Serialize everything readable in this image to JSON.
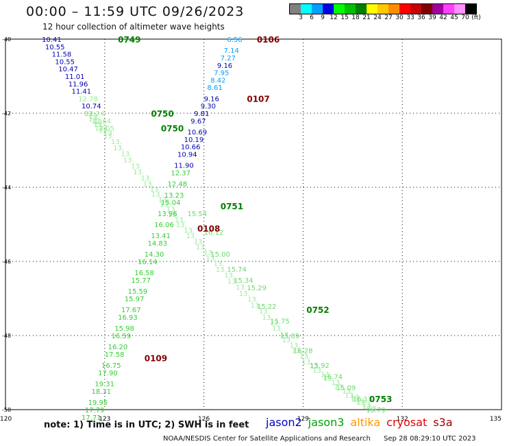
{
  "title": "00:00 – 11:59 UTC 09/26/2023",
  "subtitle": "12 hour collection of altimeter wave heights",
  "legend": {
    "labels": [
      "3",
      "6",
      "9",
      "12",
      "15",
      "18",
      "21",
      "24",
      "27",
      "30",
      "33",
      "36",
      "39",
      "42",
      "45",
      "70",
      "(ft)"
    ],
    "colors": [
      "#808080",
      "#00ffff",
      "#00a0ff",
      "#0000e0",
      "#00ff00",
      "#00c000",
      "#008000",
      "#ffff00",
      "#ffc800",
      "#ff8c00",
      "#ff0000",
      "#c80000",
      "#800000",
      "#a000a0",
      "#ff40ff",
      "#ff90ff",
      "#000000"
    ]
  },
  "note": "note: 1) Time is in UTC; 2) SWH is in feet",
  "satellites": [
    {
      "name": "jason2",
      "color": "#0000c8"
    },
    {
      "name": "jason3",
      "color": "#00a000"
    },
    {
      "name": "altika",
      "color": "#ff9900"
    },
    {
      "name": "cryosat",
      "color": "#e00000"
    },
    {
      "name": "s3a",
      "color": "#a00000"
    }
  ],
  "footer": {
    "agency": "NOAA/NESDIS Center for Satellite Applications and Research",
    "timestamp": "Sep 28 08:29:10 UTC 2023"
  },
  "axes": {
    "lat_labels": [
      "-40",
      "-42",
      "-44",
      "-46",
      "-48",
      "-50"
    ],
    "lon_labels": [
      "120",
      "123",
      "126",
      "129",
      "132",
      "135"
    ],
    "lat_range": [
      -40,
      -50
    ],
    "lon_range": [
      120,
      135
    ]
  },
  "chart_data": {
    "type": "scatter",
    "xlabel": "",
    "ylabel": "",
    "xlim": [
      120,
      135
    ],
    "ylim": [
      -50,
      -40
    ],
    "time_labels": [
      {
        "text": "0749",
        "lon": 123.4,
        "lat": -40.0,
        "color": "#008000"
      },
      {
        "text": "0750",
        "lon": 124.4,
        "lat": -42.0,
        "color": "#008000"
      },
      {
        "text": "0750",
        "lon": 124.7,
        "lat": -42.4,
        "color": "#008000"
      },
      {
        "text": "0751",
        "lon": 126.5,
        "lat": -44.5,
        "color": "#008000"
      },
      {
        "text": "0752",
        "lon": 129.1,
        "lat": -47.3,
        "color": "#008000"
      },
      {
        "text": "0753",
        "lon": 131.0,
        "lat": -49.7,
        "color": "#008000"
      },
      {
        "text": "0106",
        "lon": 127.6,
        "lat": -40.0,
        "color": "#800000"
      },
      {
        "text": "0107",
        "lon": 127.3,
        "lat": -41.6,
        "color": "#800000"
      },
      {
        "text": "0108",
        "lon": 125.8,
        "lat": -45.1,
        "color": "#800000"
      },
      {
        "text": "0109",
        "lon": 124.2,
        "lat": -48.6,
        "color": "#800000"
      }
    ],
    "track_jason2_nw": [
      {
        "lon": 121.1,
        "lat": -40.0,
        "v": "10.41"
      },
      {
        "lon": 121.2,
        "lat": -40.2,
        "v": "10.55"
      },
      {
        "lon": 121.4,
        "lat": -40.4,
        "v": "11.58"
      },
      {
        "lon": 121.5,
        "lat": -40.6,
        "v": "10.55"
      },
      {
        "lon": 121.6,
        "lat": -40.8,
        "v": "10.47"
      },
      {
        "lon": 121.8,
        "lat": -41.0,
        "v": "11.01"
      },
      {
        "lon": 121.9,
        "lat": -41.2,
        "v": "11.96"
      },
      {
        "lon": 122.0,
        "lat": -41.4,
        "v": "11.41"
      },
      {
        "lon": 122.2,
        "lat": -41.6,
        "v": "12.78"
      },
      {
        "lon": 122.3,
        "lat": -41.8,
        "v": "10.74"
      },
      {
        "lon": 122.4,
        "lat": -42.0,
        "v": "12.24"
      },
      {
        "lon": 122.6,
        "lat": -42.2,
        "v": "12.64"
      },
      {
        "lon": 122.7,
        "lat": -42.4,
        "v": "13.05"
      }
    ],
    "track_jason3_ne": [
      {
        "lon": 126.7,
        "lat": -40.0,
        "v": "6.56"
      },
      {
        "lon": 126.6,
        "lat": -40.3,
        "v": "7.14"
      },
      {
        "lon": 126.5,
        "lat": -40.5,
        "v": "7.27"
      },
      {
        "lon": 126.4,
        "lat": -40.7,
        "v": "9.16"
      },
      {
        "lon": 126.3,
        "lat": -40.9,
        "v": "7.95"
      },
      {
        "lon": 126.2,
        "lat": -41.1,
        "v": "8.42"
      },
      {
        "lon": 126.1,
        "lat": -41.3,
        "v": "8.61"
      },
      {
        "lon": 126.0,
        "lat": -41.6,
        "v": "9.16"
      },
      {
        "lon": 125.9,
        "lat": -41.8,
        "v": "9.30"
      },
      {
        "lon": 125.7,
        "lat": -42.0,
        "v": "9.81"
      },
      {
        "lon": 125.6,
        "lat": -42.2,
        "v": "9.67"
      },
      {
        "lon": 125.5,
        "lat": -42.5,
        "v": "10.69"
      },
      {
        "lon": 125.4,
        "lat": -42.7,
        "v": "10.19"
      },
      {
        "lon": 125.3,
        "lat": -42.9,
        "v": "10.66"
      },
      {
        "lon": 125.2,
        "lat": -43.1,
        "v": "10.94"
      },
      {
        "lon": 125.1,
        "lat": -43.4,
        "v": "11.90"
      },
      {
        "lon": 125.0,
        "lat": -43.6,
        "v": "12.37"
      },
      {
        "lon": 124.9,
        "lat": -43.9,
        "v": "12.48"
      },
      {
        "lon": 124.8,
        "lat": -44.2,
        "v": "13.23"
      },
      {
        "lon": 124.7,
        "lat": -44.4,
        "v": "15.04"
      },
      {
        "lon": 124.6,
        "lat": -44.7,
        "v": "13.96"
      },
      {
        "lon": 124.5,
        "lat": -45.0,
        "v": "16.06"
      },
      {
        "lon": 124.4,
        "lat": -45.3,
        "v": "13.41"
      },
      {
        "lon": 124.3,
        "lat": -45.5,
        "v": "14.83"
      },
      {
        "lon": 124.2,
        "lat": -45.8,
        "v": "14.30"
      },
      {
        "lon": 124.0,
        "lat": -46.0,
        "v": "16.14"
      },
      {
        "lon": 123.9,
        "lat": -46.3,
        "v": "16.58"
      },
      {
        "lon": 123.8,
        "lat": -46.5,
        "v": "15.77"
      },
      {
        "lon": 123.7,
        "lat": -46.8,
        "v": "15.59"
      },
      {
        "lon": 123.6,
        "lat": -47.0,
        "v": "15.97"
      },
      {
        "lon": 123.5,
        "lat": -47.3,
        "v": "17.67"
      },
      {
        "lon": 123.4,
        "lat": -47.5,
        "v": "16.93"
      },
      {
        "lon": 123.3,
        "lat": -47.8,
        "v": "15.98"
      },
      {
        "lon": 123.2,
        "lat": -48.0,
        "v": "16.59"
      },
      {
        "lon": 123.1,
        "lat": -48.3,
        "v": "16.20"
      },
      {
        "lon": 123.0,
        "lat": -48.5,
        "v": "17.58"
      },
      {
        "lon": 122.9,
        "lat": -48.8,
        "v": "16.75"
      },
      {
        "lon": 122.8,
        "lat": -49.0,
        "v": "17.90"
      },
      {
        "lon": 122.7,
        "lat": -49.3,
        "v": "19.31"
      },
      {
        "lon": 122.6,
        "lat": -49.5,
        "v": "18.31"
      },
      {
        "lon": 122.5,
        "lat": -49.8,
        "v": "19.95"
      },
      {
        "lon": 122.4,
        "lat": -50.0,
        "v": "17.79"
      },
      {
        "lon": 122.3,
        "lat": -50.2,
        "v": "17.71"
      }
    ],
    "track_se_labels": [
      {
        "lon": 125.5,
        "lat": -44.7,
        "v": "15.54"
      },
      {
        "lon": 126.0,
        "lat": -45.2,
        "v": "16.12"
      },
      {
        "lon": 126.2,
        "lat": -45.8,
        "v": "15.00"
      },
      {
        "lon": 126.7,
        "lat": -46.2,
        "v": "15.74"
      },
      {
        "lon": 126.9,
        "lat": -46.5,
        "v": "15.34"
      },
      {
        "lon": 127.3,
        "lat": -46.7,
        "v": "15.29"
      },
      {
        "lon": 127.6,
        "lat": -47.2,
        "v": "15.22"
      },
      {
        "lon": 128.0,
        "lat": -47.6,
        "v": "15.75"
      },
      {
        "lon": 128.3,
        "lat": -48.0,
        "v": "15.89"
      },
      {
        "lon": 128.7,
        "lat": -48.4,
        "v": "16.28"
      },
      {
        "lon": 129.2,
        "lat": -48.8,
        "v": "15.92"
      },
      {
        "lon": 129.6,
        "lat": -49.1,
        "v": "16.74"
      },
      {
        "lon": 130.0,
        "lat": -49.4,
        "v": "15.09"
      },
      {
        "lon": 130.5,
        "lat": -49.7,
        "v": "16.13"
      },
      {
        "lon": 130.9,
        "lat": -50.0,
        "v": "16.79"
      }
    ]
  }
}
